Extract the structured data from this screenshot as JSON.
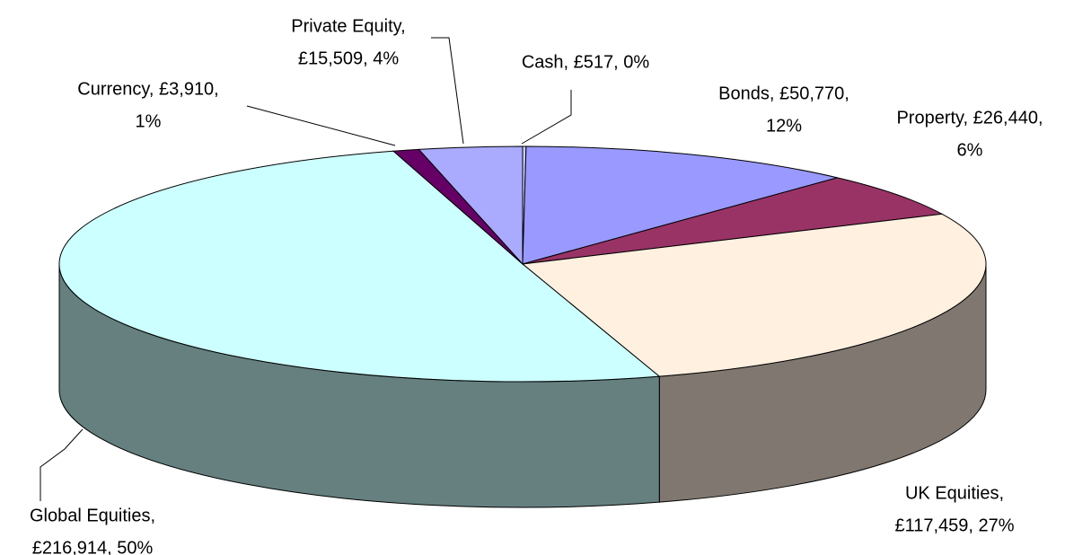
{
  "chart_data": {
    "type": "pie3d",
    "labels": [
      [
        "Cash, £517, 0%"
      ],
      [
        "Bonds, £50,770,",
        "12%"
      ],
      [
        "Property, £26,440,",
        "6%"
      ],
      [
        "UK Equities,",
        "£117,459, 27%"
      ],
      [
        "Global Equities,",
        "£216,914, 50%"
      ],
      [
        "Currency, £3,910,",
        "1%"
      ],
      [
        "Private Equity,",
        "£15,509, 4%"
      ]
    ],
    "values": [
      517,
      50770,
      26440,
      117459,
      216914,
      3910,
      15509
    ],
    "colors": [
      "#ccccff",
      "#9999ff",
      "#993366",
      "#fff0e0",
      "#ccffff",
      "#660066",
      "#aaaaff"
    ]
  }
}
